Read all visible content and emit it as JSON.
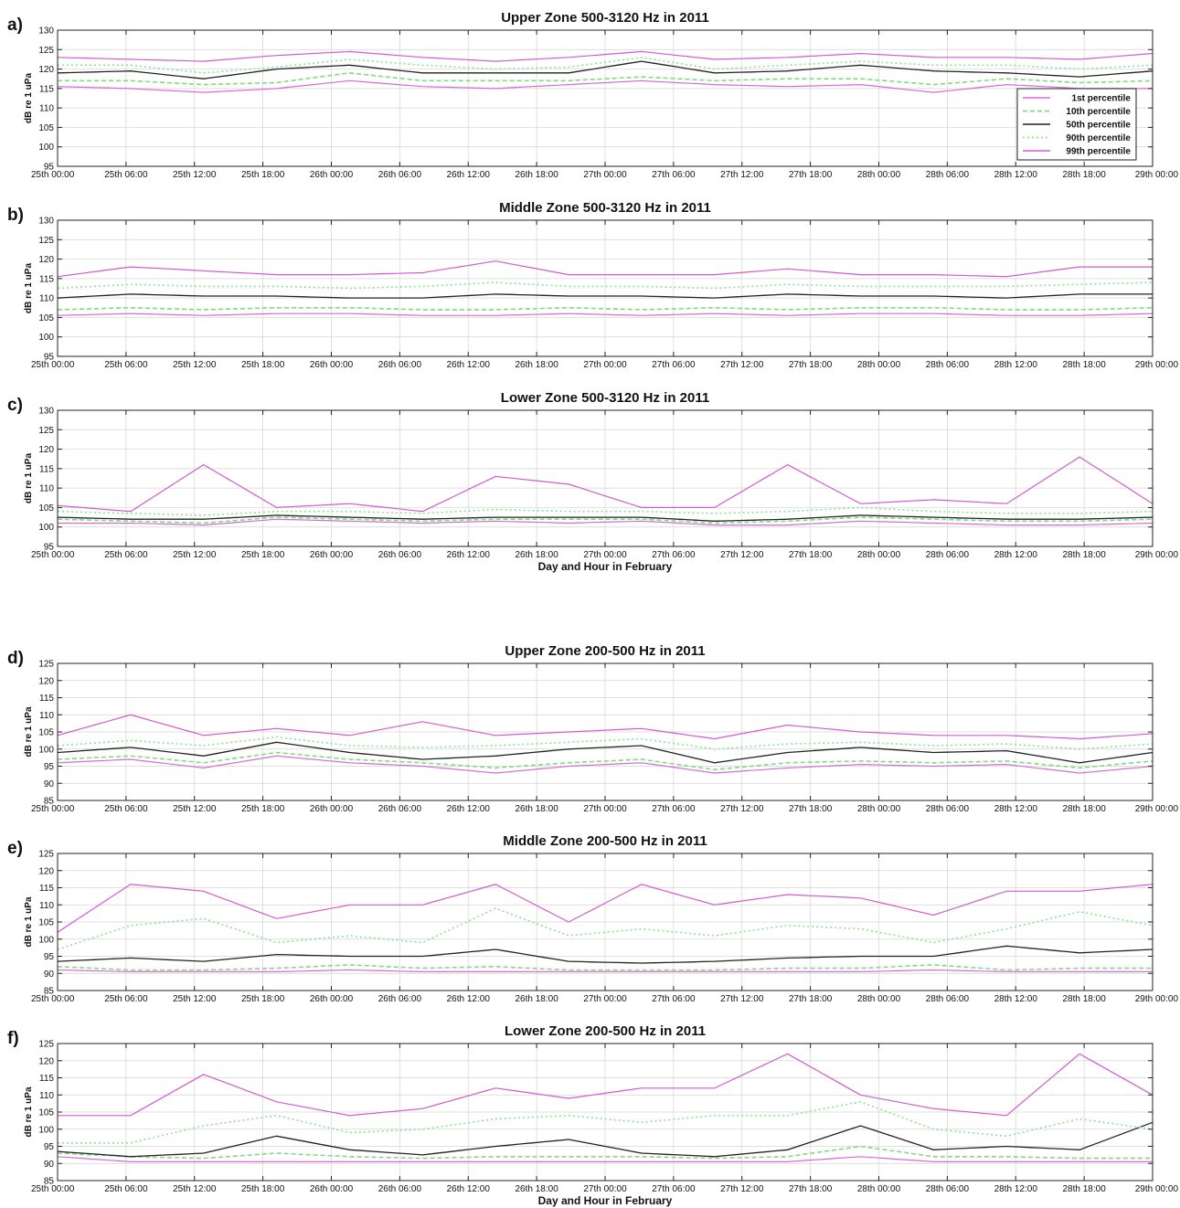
{
  "figure": {
    "colors": {
      "p1": "#d86ad8",
      "p10": "#7fdc7f",
      "p50": "#222222",
      "p90": "#8fe28f",
      "p99": "#d05cd0",
      "grid": "#d4d4d4",
      "axis": "#222222"
    },
    "legend": [
      "1st percentile",
      "10th percentile",
      "50th percentile",
      "90th percentile",
      "99th percentile"
    ]
  },
  "chart_data": [
    {
      "type": "line",
      "panel_label": "a)",
      "title": "Upper Zone 500-3120 Hz in 2011",
      "ylabel": "dB re 1 uPa",
      "xlabel": "",
      "ylim": [
        95,
        130
      ],
      "yticks": [
        95,
        100,
        105,
        110,
        115,
        120,
        125,
        130
      ],
      "xticks": [
        "25th 00:00",
        "25th 06:00",
        "25th 12:00",
        "25th 18:00",
        "26th 00:00",
        "26th 06:00",
        "26th 12:00",
        "26th 18:00",
        "27th 00:00",
        "27th 06:00",
        "27th 12:00",
        "27th 18:00",
        "28th 00:00",
        "28th 06:00",
        "28th 12:00",
        "28th 18:00",
        "29th 00:00"
      ],
      "grid": true,
      "legend_position": "right-lower",
      "x_hours": [
        0,
        6,
        12,
        18,
        24,
        30,
        36,
        42,
        48,
        54,
        60,
        66,
        72,
        78,
        84,
        90,
        96
      ],
      "series": [
        {
          "name": "1st percentile",
          "values": [
            115.5,
            115,
            114,
            115,
            117,
            115.5,
            115,
            116,
            117,
            116,
            115.5,
            116,
            114,
            116,
            115,
            115
          ]
        },
        {
          "name": "10th percentile",
          "values": [
            117,
            117,
            116,
            116.5,
            119,
            117,
            117,
            117,
            118,
            117,
            117.5,
            117.5,
            116,
            117.5,
            116.5,
            117
          ]
        },
        {
          "name": "50th percentile",
          "values": [
            119,
            119.5,
            117.5,
            120,
            121,
            119,
            119,
            119,
            122,
            119,
            119.5,
            121,
            119.5,
            119,
            118,
            119.5
          ]
        },
        {
          "name": "90th percentile",
          "values": [
            121,
            121,
            119,
            120.5,
            122.5,
            121,
            120,
            120.5,
            123,
            120,
            121,
            122,
            121,
            121,
            120,
            121
          ]
        },
        {
          "name": "99th percentile",
          "values": [
            123,
            122.5,
            122,
            123.5,
            124.5,
            123,
            122,
            123,
            124.5,
            122.5,
            123,
            124,
            123,
            123,
            122.5,
            124
          ]
        }
      ]
    },
    {
      "type": "line",
      "panel_label": "b)",
      "title": "Middle Zone 500-3120 Hz in 2011",
      "ylabel": "dB re 1 uPa",
      "xlabel": "",
      "ylim": [
        95,
        130
      ],
      "yticks": [
        95,
        100,
        105,
        110,
        115,
        120,
        125,
        130
      ],
      "xticks": [
        "25th 00:00",
        "25th 06:00",
        "25th 12:00",
        "25th 18:00",
        "26th 00:00",
        "26th 06:00",
        "26th 12:00",
        "26th 18:00",
        "27th 00:00",
        "27th 06:00",
        "27th 12:00",
        "27th 18:00",
        "28th 00:00",
        "28th 06:00",
        "28th 12:00",
        "28th 18:00",
        "29th 00:00"
      ],
      "grid": true,
      "x_hours": [
        0,
        6,
        12,
        18,
        24,
        30,
        36,
        42,
        48,
        54,
        60,
        66,
        72,
        78,
        84,
        90,
        96
      ],
      "series": [
        {
          "name": "1st percentile",
          "values": [
            105.5,
            106,
            105.5,
            106,
            106,
            105.5,
            105.5,
            106,
            105.5,
            106,
            105.5,
            106,
            106,
            105.5,
            105.5,
            106
          ]
        },
        {
          "name": "10th percentile",
          "values": [
            107,
            107.5,
            107,
            107.5,
            107.5,
            107,
            107,
            107.5,
            107,
            107.5,
            107,
            107.5,
            107.5,
            107,
            107,
            107.5
          ]
        },
        {
          "name": "50th percentile",
          "values": [
            110,
            111,
            110.5,
            110.5,
            110,
            110,
            111,
            110.5,
            110.5,
            110,
            111,
            110.5,
            110.5,
            110,
            111,
            111
          ]
        },
        {
          "name": "90th percentile",
          "values": [
            112.5,
            113.5,
            113,
            113,
            112.5,
            113,
            114,
            113,
            113,
            112.5,
            113.5,
            113,
            113,
            113,
            113.5,
            114
          ]
        },
        {
          "name": "99th percentile",
          "values": [
            115.5,
            118,
            117,
            116,
            116,
            116.5,
            119.5,
            116,
            116,
            116,
            117.5,
            116,
            116,
            115.5,
            118,
            118
          ]
        }
      ]
    },
    {
      "type": "line",
      "panel_label": "c)",
      "title": "Lower Zone 500-3120 Hz in 2011",
      "ylabel": "dB re 1 uPa",
      "xlabel": "Day and Hour in February",
      "ylim": [
        95,
        130
      ],
      "yticks": [
        95,
        100,
        105,
        110,
        115,
        120,
        125,
        130
      ],
      "xticks": [
        "25th 00:00",
        "25th 06:00",
        "25th 12:00",
        "25th 18:00",
        "26th 00:00",
        "26th 06:00",
        "26th 12:00",
        "26th 18:00",
        "27th 00:00",
        "27th 06:00",
        "27th 12:00",
        "27th 18:00",
        "28th 00:00",
        "28th 06:00",
        "28th 12:00",
        "28th 18:00",
        "29th 00:00"
      ],
      "grid": true,
      "x_hours": [
        0,
        6,
        12,
        18,
        24,
        30,
        36,
        42,
        48,
        54,
        60,
        66,
        72,
        78,
        84,
        90,
        96
      ],
      "series": [
        {
          "name": "1st percentile",
          "values": [
            101,
            101,
            100.5,
            102,
            101.5,
            101,
            101.5,
            101,
            101.5,
            100.5,
            100.5,
            101.5,
            101,
            100.5,
            100.5,
            101
          ]
        },
        {
          "name": "10th percentile",
          "values": [
            102,
            101.5,
            101,
            102.5,
            102,
            101.5,
            102,
            102,
            102,
            101,
            101.5,
            102.5,
            102,
            101.5,
            101.5,
            102
          ]
        },
        {
          "name": "50th percentile",
          "values": [
            102.5,
            102,
            102,
            103,
            102.5,
            102,
            102.5,
            102.5,
            102.5,
            101.5,
            102,
            103,
            102.5,
            102,
            102,
            102.5
          ]
        },
        {
          "name": "90th percentile",
          "values": [
            104,
            103.5,
            103,
            104,
            104,
            103.5,
            104.5,
            104,
            104,
            103.5,
            104,
            105,
            104,
            103.5,
            103.5,
            104
          ]
        },
        {
          "name": "99th percentile",
          "values": [
            105.5,
            104,
            116,
            105,
            106,
            104,
            113,
            111,
            105,
            105,
            116,
            106,
            107,
            106,
            118,
            106
          ]
        }
      ]
    },
    {
      "type": "line",
      "panel_label": "d)",
      "title": "Upper Zone 200-500 Hz in 2011",
      "ylabel": "dB re 1 uPa",
      "xlabel": "",
      "ylim": [
        85,
        125
      ],
      "yticks": [
        85,
        90,
        95,
        100,
        105,
        110,
        115,
        120,
        125
      ],
      "xticks": [
        "25th 00:00",
        "25th 06:00",
        "25th 12:00",
        "25th 18:00",
        "26th 00:00",
        "26th 06:00",
        "26th 12:00",
        "26th 18:00",
        "27th 00:00",
        "27th 06:00",
        "27th 12:00",
        "27th 18:00",
        "28th 00:00",
        "28th 06:00",
        "28th 12:00",
        "28th 18:00",
        "29th 00:00"
      ],
      "grid": true,
      "x_hours": [
        0,
        6,
        12,
        18,
        24,
        30,
        36,
        42,
        48,
        54,
        60,
        66,
        72,
        78,
        84,
        90,
        96
      ],
      "series": [
        {
          "name": "1st percentile",
          "values": [
            96,
            97,
            94.5,
            98,
            96,
            95,
            93,
            95,
            96,
            93,
            94.5,
            95.5,
            95,
            95.5,
            93,
            95
          ]
        },
        {
          "name": "10th percentile",
          "values": [
            97,
            98,
            96,
            99,
            97,
            96,
            94.5,
            96,
            97,
            94,
            96,
            96.5,
            96,
            96.5,
            94.5,
            96.5
          ]
        },
        {
          "name": "50th percentile",
          "values": [
            99,
            100.5,
            98,
            102,
            99,
            97,
            98,
            100,
            101,
            96,
            99,
            100.5,
            99,
            99.5,
            96,
            99
          ]
        },
        {
          "name": "90th percentile",
          "values": [
            101,
            102.5,
            101,
            103.5,
            101,
            100.5,
            101,
            102,
            103,
            100,
            101.5,
            102,
            101,
            101.5,
            100,
            101.5
          ]
        },
        {
          "name": "99th percentile",
          "values": [
            104,
            110,
            104,
            106,
            104,
            108,
            104,
            105,
            106,
            103,
            107,
            105,
            104,
            104,
            103,
            104.5
          ]
        }
      ]
    },
    {
      "type": "line",
      "panel_label": "e)",
      "title": "Middle Zone 200-500 Hz in 2011",
      "ylabel": "dB re 1 uPa",
      "xlabel": "",
      "ylim": [
        85,
        125
      ],
      "yticks": [
        85,
        90,
        95,
        100,
        105,
        110,
        115,
        120,
        125
      ],
      "xticks": [
        "25th 00:00",
        "25th 06:00",
        "25th 12:00",
        "25th 18:00",
        "26th 00:00",
        "26th 06:00",
        "26th 12:00",
        "26th 18:00",
        "27th 00:00",
        "27th 06:00",
        "27th 12:00",
        "27th 18:00",
        "28th 00:00",
        "28th 06:00",
        "28th 12:00",
        "28th 18:00",
        "29th 00:00"
      ],
      "grid": true,
      "x_hours": [
        0,
        6,
        12,
        18,
        24,
        30,
        36,
        42,
        48,
        54,
        60,
        66,
        72,
        78,
        84,
        90,
        96
      ],
      "series": [
        {
          "name": "1st percentile",
          "values": [
            91,
            90.5,
            90.5,
            90.5,
            91,
            90.5,
            90.5,
            90.5,
            90.5,
            90.5,
            90.5,
            90.5,
            91,
            90.5,
            90.5,
            90.5
          ]
        },
        {
          "name": "10th percentile",
          "values": [
            92,
            91,
            91,
            91.5,
            92.5,
            91.5,
            92,
            91,
            91,
            91,
            91.5,
            91.5,
            92.5,
            91,
            91.5,
            91.5
          ]
        },
        {
          "name": "50th percentile",
          "values": [
            93.5,
            94.5,
            93.5,
            95.5,
            95,
            95,
            97,
            93.5,
            93,
            93.5,
            94.5,
            95,
            95,
            98,
            96,
            97
          ]
        },
        {
          "name": "90th percentile",
          "values": [
            97,
            104,
            106,
            99,
            101,
            99,
            109,
            101,
            103,
            101,
            104,
            103,
            99,
            103,
            108,
            104
          ]
        },
        {
          "name": "99th percentile",
          "values": [
            102,
            116,
            114,
            106,
            110,
            110,
            116,
            105,
            116,
            110,
            113,
            112,
            107,
            114,
            114,
            116
          ]
        }
      ]
    },
    {
      "type": "line",
      "panel_label": "f)",
      "title": "Lower Zone 200-500 Hz in 2011",
      "ylabel": "dB re 1 uPa",
      "xlabel": "Day and Hour in February",
      "ylim": [
        85,
        125
      ],
      "yticks": [
        85,
        90,
        95,
        100,
        105,
        110,
        115,
        120,
        125
      ],
      "xticks": [
        "25th 00:00",
        "25th 06:00",
        "25th 12:00",
        "25th 18:00",
        "26th 00:00",
        "26th 06:00",
        "26th 12:00",
        "26th 18:00",
        "27th 00:00",
        "27th 06:00",
        "27th 12:00",
        "27th 18:00",
        "28th 00:00",
        "28th 06:00",
        "28th 12:00",
        "28th 18:00",
        "29th 00:00"
      ],
      "grid": true,
      "x_hours": [
        0,
        6,
        12,
        18,
        24,
        30,
        36,
        42,
        48,
        54,
        60,
        66,
        72,
        78,
        84,
        90,
        96
      ],
      "series": [
        {
          "name": "1st percentile",
          "values": [
            92,
            90.5,
            90.5,
            90.5,
            90.5,
            90.5,
            90.5,
            90.5,
            90.5,
            90.5,
            90.5,
            92,
            90.5,
            90.5,
            90.5,
            90.5
          ]
        },
        {
          "name": "10th percentile",
          "values": [
            93,
            92,
            91.5,
            93,
            92,
            91.5,
            92,
            92,
            92,
            91.5,
            92,
            95,
            92,
            92,
            91.5,
            91.5
          ]
        },
        {
          "name": "50th percentile",
          "values": [
            93.5,
            92,
            93,
            98,
            94,
            92.5,
            95,
            97,
            93,
            92,
            94,
            101,
            94,
            95,
            94,
            102
          ]
        },
        {
          "name": "90th percentile",
          "values": [
            96,
            96,
            101,
            104,
            99,
            100,
            103,
            104,
            102,
            104,
            104,
            108,
            100,
            98,
            103,
            100
          ]
        },
        {
          "name": "99th percentile",
          "values": [
            104,
            104,
            116,
            108,
            104,
            106,
            112,
            109,
            112,
            112,
            122,
            110,
            106,
            104,
            122,
            110
          ]
        }
      ]
    }
  ]
}
